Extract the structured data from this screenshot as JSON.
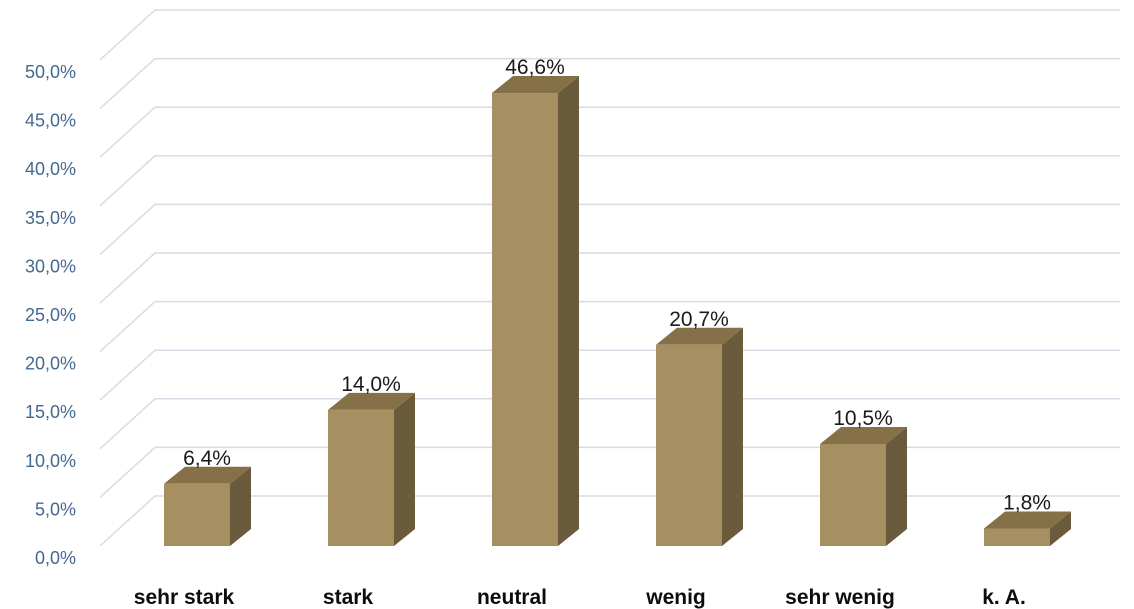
{
  "chart_data": {
    "type": "bar",
    "style": "3d-column",
    "categories": [
      "sehr stark",
      "stark",
      "neutral",
      "wenig",
      "sehr wenig",
      "k. A."
    ],
    "values": [
      6.4,
      14.0,
      46.6,
      20.7,
      10.5,
      1.8
    ],
    "value_labels": [
      "6,4%",
      "14,0%",
      "46,6%",
      "20,7%",
      "10,5%",
      "1,8%"
    ],
    "y_ticks": [
      0,
      5,
      10,
      15,
      20,
      25,
      30,
      35,
      40,
      45,
      50
    ],
    "y_tick_labels": [
      "0,0%",
      "5,0%",
      "10,0%",
      "15,0%",
      "20,0%",
      "25,0%",
      "30,0%",
      "35,0%",
      "40,0%",
      "45,0%",
      "50,0%"
    ],
    "ylim": [
      0,
      50
    ],
    "grid": true,
    "legend": "none",
    "colors": {
      "front": "#a68f61",
      "side": "#6b5b3d",
      "top": "#857048",
      "grid": "#d4dde6",
      "tick_text": "#44698f"
    }
  }
}
